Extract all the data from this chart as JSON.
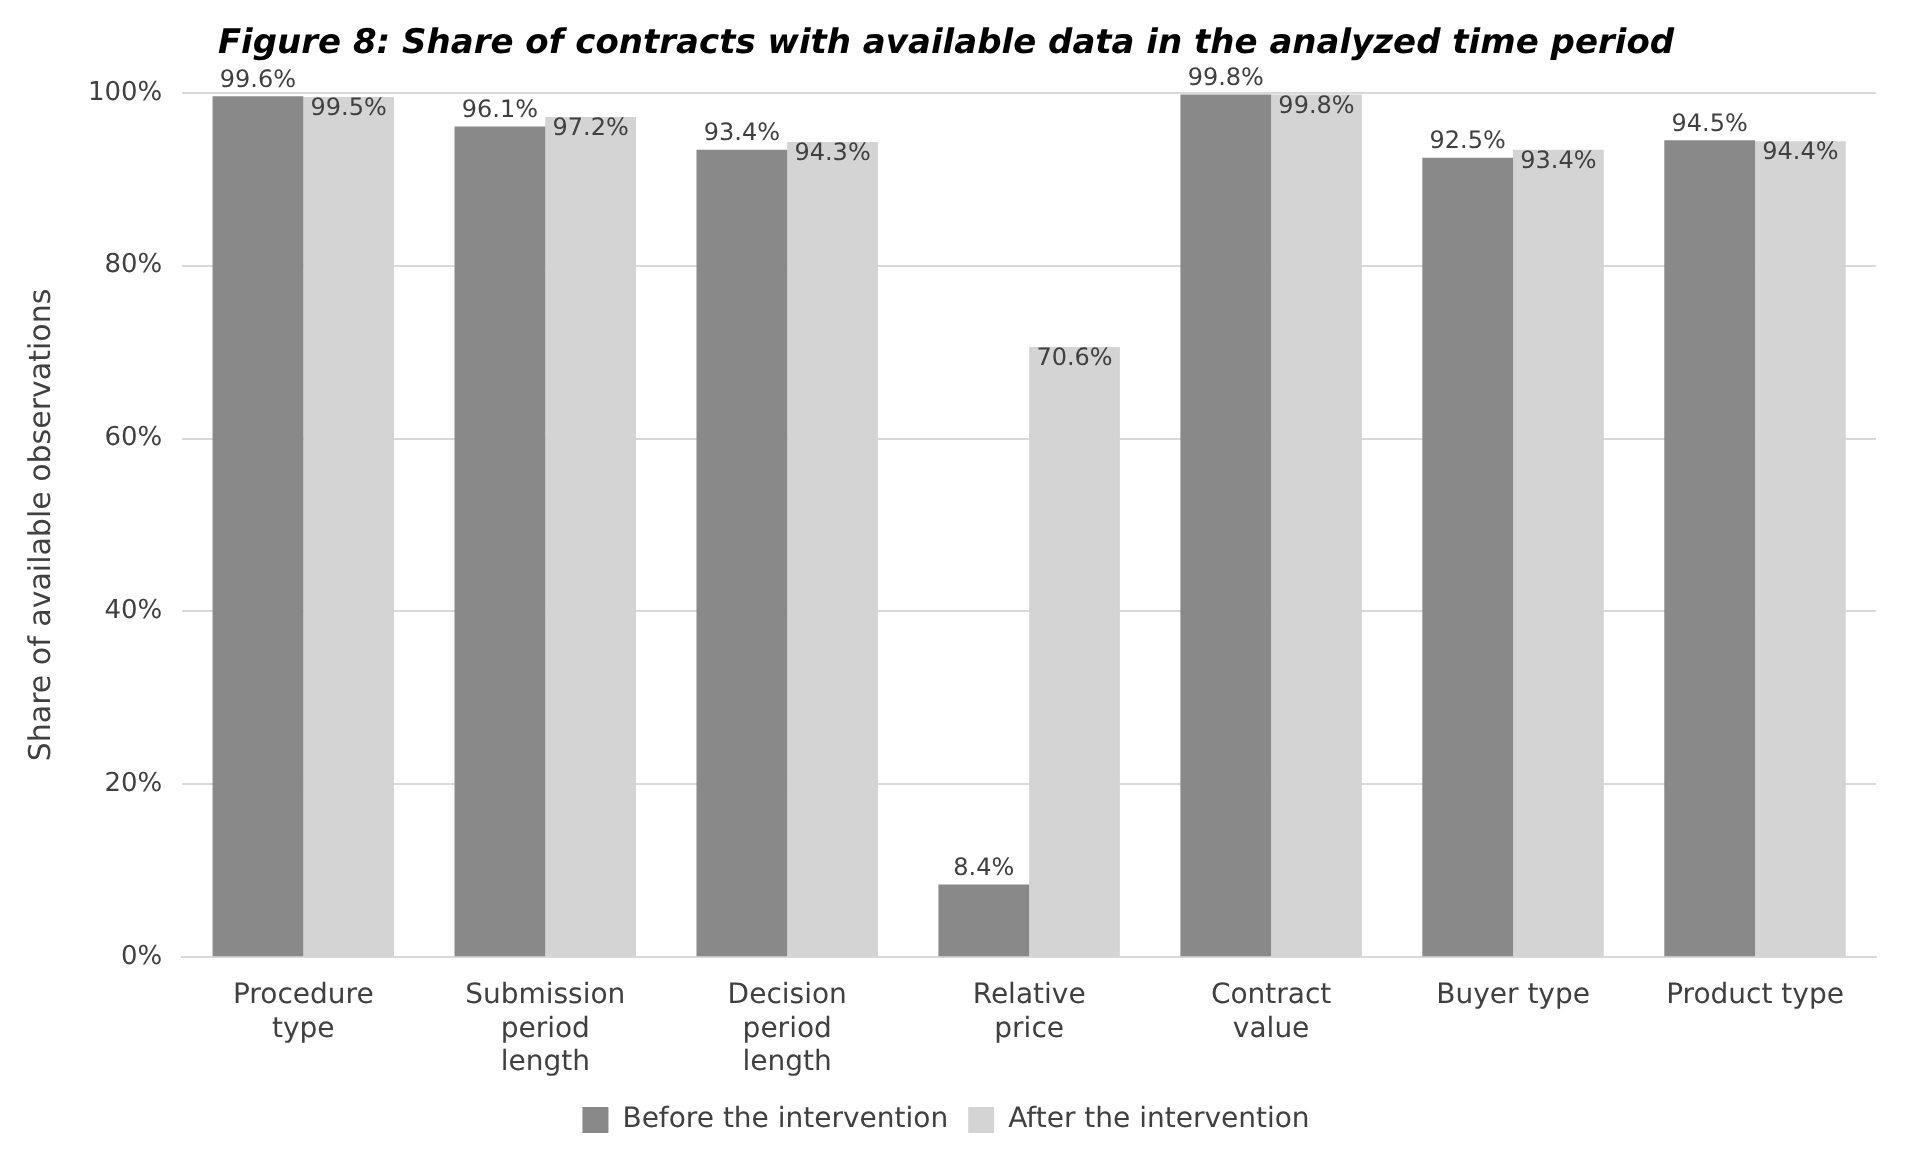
{
  "chart_data": {
    "type": "bar",
    "title": "Figure 8: Share of contracts with available data in the analyzed time period",
    "ylabel": "Share of available observations",
    "categories": [
      "Procedure type",
      "Submission period length",
      "Decision period length",
      "Relative price",
      "Contract value",
      "Buyer type",
      "Product type"
    ],
    "series": [
      {
        "name": "Before the intervention",
        "color": "#898989",
        "values": [
          99.6,
          96.1,
          93.4,
          8.4,
          99.8,
          92.5,
          94.5
        ],
        "value_labels": [
          "99.6%",
          "96.1%",
          "93.4%",
          "8.4%",
          "99.8%",
          "92.5%",
          "94.5%"
        ]
      },
      {
        "name": "After the intervention",
        "color": "#d4d4d4",
        "values": [
          99.5,
          97.2,
          94.3,
          70.6,
          99.8,
          93.4,
          94.4
        ],
        "value_labels": [
          "99.5%",
          "97.2%",
          "94.3%",
          "70.6%",
          "99.8%",
          "93.4%",
          "94.4%"
        ]
      }
    ],
    "ylim": [
      0,
      100
    ],
    "yticks": [
      {
        "value": 0,
        "label": "0%"
      },
      {
        "value": 20,
        "label": "20%"
      },
      {
        "value": 40,
        "label": "40%"
      },
      {
        "value": 60,
        "label": "60%"
      },
      {
        "value": 80,
        "label": "80%"
      },
      {
        "value": 100,
        "label": "100%"
      }
    ],
    "grid": "y",
    "legend": "bottom"
  }
}
